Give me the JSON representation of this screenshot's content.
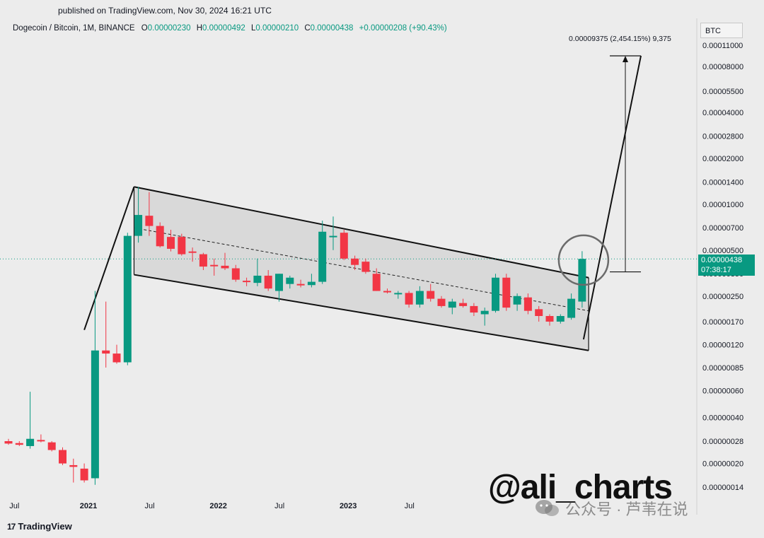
{
  "header": {
    "published": "published on TradingView.com, Nov 30, 2024 16:21 UTC"
  },
  "legend": {
    "symbol": "Dogecoin / Bitcoin, 1M, BINANCE",
    "open_label": "O",
    "open": "0.00000230",
    "high_label": "H",
    "high": "0.00000492",
    "low_label": "L",
    "low": "0.00000210",
    "close_label": "C",
    "close": "0.00000438",
    "change": "+0.00000208 (+90.43%)"
  },
  "currency_label": "BTC",
  "measure_label": "0.00009375 (2,454.15%) 9,375",
  "price_tag": {
    "price": "0.00000438",
    "countdown": "07:38:17"
  },
  "watermark": "@ali_charts",
  "wechat_text": "公众号 · 芦苇在说",
  "brand": "TradingView",
  "colors": {
    "up": "#089981",
    "down": "#f23645",
    "background": "#ececec",
    "channel_fill": "#d9d9d9"
  },
  "chart_data": {
    "type": "candlestick",
    "title": "Dogecoin / Bitcoin, 1M, BINANCE",
    "y_scale": "log",
    "y_ticks": [
      "0.00011000",
      "0.00008000",
      "0.00005500",
      "0.00004000",
      "0.00002800",
      "0.00002000",
      "0.00001400",
      "0.00001000",
      "0.00000700",
      "0.00000500",
      "0.00000350",
      "0.00000250",
      "0.00000170",
      "0.00000120",
      "0.00000085",
      "0.00000060",
      "0.00000040",
      "0.00000028",
      "0.00000020",
      "0.00000014"
    ],
    "x_ticks": [
      "Jul",
      "2021",
      "Jul",
      "2022",
      "Jul",
      "2023",
      "Jul"
    ],
    "candles": [
      {
        "o": 2.8e-07,
        "h": 2.9e-07,
        "l": 2.65e-07,
        "c": 2.7e-07
      },
      {
        "o": 2.72e-07,
        "h": 2.8e-07,
        "l": 2.6e-07,
        "c": 2.65e-07
      },
      {
        "o": 2.6e-07,
        "h": 5.9e-07,
        "l": 2.5e-07,
        "c": 2.9e-07
      },
      {
        "o": 2.85e-07,
        "h": 3.1e-07,
        "l": 2.75e-07,
        "c": 2.82e-07
      },
      {
        "o": 2.75e-07,
        "h": 2.8e-07,
        "l": 2.4e-07,
        "c": 2.45e-07
      },
      {
        "o": 2.45e-07,
        "h": 2.55e-07,
        "l": 1.95e-07,
        "c": 2e-07
      },
      {
        "o": 1.95e-07,
        "h": 2.15e-07,
        "l": 1.5e-07,
        "c": 1.9e-07
      },
      {
        "o": 1.85e-07,
        "h": 2e-07,
        "l": 1.5e-07,
        "c": 1.55e-07
      },
      {
        "o": 1.6e-07,
        "h": 2.7e-06,
        "l": 1.45e-07,
        "c": 1.1e-06
      },
      {
        "o": 1.1e-06,
        "h": 2.3e-06,
        "l": 8.5e-07,
        "c": 1.05e-06
      },
      {
        "o": 1.05e-06,
        "h": 1.2e-06,
        "l": 9e-07,
        "c": 9.2e-07
      },
      {
        "o": 9.2e-07,
        "h": 6.5e-06,
        "l": 8.8e-07,
        "c": 6.2e-06
      },
      {
        "o": 6.2e-06,
        "h": 1.3e-05,
        "l": 5.6e-06,
        "c": 8.5e-06
      },
      {
        "o": 8.4e-06,
        "h": 1.2e-05,
        "l": 6.2e-06,
        "c": 7.2e-06
      },
      {
        "o": 7.2e-06,
        "h": 7.6e-06,
        "l": 5.2e-06,
        "c": 5.3e-06
      },
      {
        "o": 6.1e-06,
        "h": 6.8e-06,
        "l": 4.9e-06,
        "c": 5.1e-06
      },
      {
        "o": 6.1e-06,
        "h": 6.4e-06,
        "l": 4.6e-06,
        "c": 4.7e-06
      },
      {
        "o": 4.9e-06,
        "h": 5.2e-06,
        "l": 4.2e-06,
        "c": 4.8e-06
      },
      {
        "o": 4.7e-06,
        "h": 4.8e-06,
        "l": 3.7e-06,
        "c": 3.9e-06
      },
      {
        "o": 4e-06,
        "h": 4.4e-06,
        "l": 3.4e-06,
        "c": 3.95e-06
      },
      {
        "o": 3.95e-06,
        "h": 4.8e-06,
        "l": 3.7e-06,
        "c": 3.8e-06
      },
      {
        "o": 3.8e-06,
        "h": 4e-06,
        "l": 3.1e-06,
        "c": 3.2e-06
      },
      {
        "o": 3.15e-06,
        "h": 3.3e-06,
        "l": 2.9e-06,
        "c": 3.12e-06
      },
      {
        "o": 3.05e-06,
        "h": 4.4e-06,
        "l": 2.9e-06,
        "c": 3.4e-06
      },
      {
        "o": 3.4e-06,
        "h": 3.7e-06,
        "l": 2.7e-06,
        "c": 2.8e-06
      },
      {
        "o": 2.7e-06,
        "h": 3.5e-06,
        "l": 2.3e-06,
        "c": 3.5e-06
      },
      {
        "o": 3e-06,
        "h": 3.4e-06,
        "l": 2.8e-06,
        "c": 3.3e-06
      },
      {
        "o": 3e-06,
        "h": 3.2e-06,
        "l": 2.85e-06,
        "c": 2.95e-06
      },
      {
        "o": 2.95e-06,
        "h": 3.5e-06,
        "l": 2.85e-06,
        "c": 3.1e-06
      },
      {
        "o": 3.1e-06,
        "h": 7.8e-06,
        "l": 3e-06,
        "c": 6.6e-06
      },
      {
        "o": 6.1e-06,
        "h": 8.3e-06,
        "l": 5e-06,
        "c": 6.2e-06
      },
      {
        "o": 6.5e-06,
        "h": 6.8e-06,
        "l": 4.3e-06,
        "c": 4.4e-06
      },
      {
        "o": 4.4e-06,
        "h": 4.6e-06,
        "l": 3.7e-06,
        "c": 4e-06
      },
      {
        "o": 4.2e-06,
        "h": 4.4e-06,
        "l": 3.5e-06,
        "c": 3.6e-06
      },
      {
        "o": 3.5e-06,
        "h": 3.8e-06,
        "l": 2.7e-06,
        "c": 2.7e-06
      },
      {
        "o": 2.7e-06,
        "h": 2.8e-06,
        "l": 2.6e-06,
        "c": 2.65e-06
      },
      {
        "o": 2.6e-06,
        "h": 2.7e-06,
        "l": 2.4e-06,
        "c": 2.62e-06
      },
      {
        "o": 2.62e-06,
        "h": 2.7e-06,
        "l": 2.1e-06,
        "c": 2.2e-06
      },
      {
        "o": 2.2e-06,
        "h": 2.9e-06,
        "l": 2.1e-06,
        "c": 2.7e-06
      },
      {
        "o": 2.7e-06,
        "h": 3e-06,
        "l": 2.3e-06,
        "c": 2.4e-06
      },
      {
        "o": 2.4e-06,
        "h": 2.5e-06,
        "l": 2.1e-06,
        "c": 2.15e-06
      },
      {
        "o": 2.1e-06,
        "h": 2.4e-06,
        "l": 1.9e-06,
        "c": 2.3e-06
      },
      {
        "o": 2.25e-06,
        "h": 2.4e-06,
        "l": 2.1e-06,
        "c": 2.15e-06
      },
      {
        "o": 2.15e-06,
        "h": 2.25e-06,
        "l": 1.85e-06,
        "c": 1.95e-06
      },
      {
        "o": 1.9e-06,
        "h": 2.1e-06,
        "l": 1.6e-06,
        "c": 2e-06
      },
      {
        "o": 2e-06,
        "h": 3.5e-06,
        "l": 1.95e-06,
        "c": 3.3e-06
      },
      {
        "o": 3.3e-06,
        "h": 3.5e-06,
        "l": 2e-06,
        "c": 2.1e-06
      },
      {
        "o": 2.2e-06,
        "h": 2.6e-06,
        "l": 2e-06,
        "c": 2.5e-06
      },
      {
        "o": 2.45e-06,
        "h": 2.6e-06,
        "l": 1.9e-06,
        "c": 2e-06
      },
      {
        "o": 2.05e-06,
        "h": 2.15e-06,
        "l": 1.7e-06,
        "c": 1.85e-06
      },
      {
        "o": 1.85e-06,
        "h": 1.9e-06,
        "l": 1.6e-06,
        "c": 1.7e-06
      },
      {
        "o": 1.7e-06,
        "h": 1.9e-06,
        "l": 1.65e-06,
        "c": 1.85e-06
      },
      {
        "o": 1.8e-06,
        "h": 2.6e-06,
        "l": 1.75e-06,
        "c": 2.4e-06
      },
      {
        "o": 2.3e-06,
        "h": 4.92e-06,
        "l": 2.1e-06,
        "c": 4.38e-06
      }
    ],
    "channel": {
      "upper": [
        {
          "i": 11.6,
          "p": 1.3e-05
        },
        {
          "i": 53.6,
          "p": 3.3e-06
        }
      ],
      "lower": [
        {
          "i": 11.6,
          "p": 3.45e-06
        },
        {
          "i": 53.6,
          "p": 1.1e-06
        }
      ],
      "mid": [
        {
          "i": 11.6,
          "p": 7e-06
        },
        {
          "i": 53.6,
          "p": 2e-06
        }
      ]
    },
    "target_price": 9.375e-05,
    "current_price": 4.38e-06
  }
}
